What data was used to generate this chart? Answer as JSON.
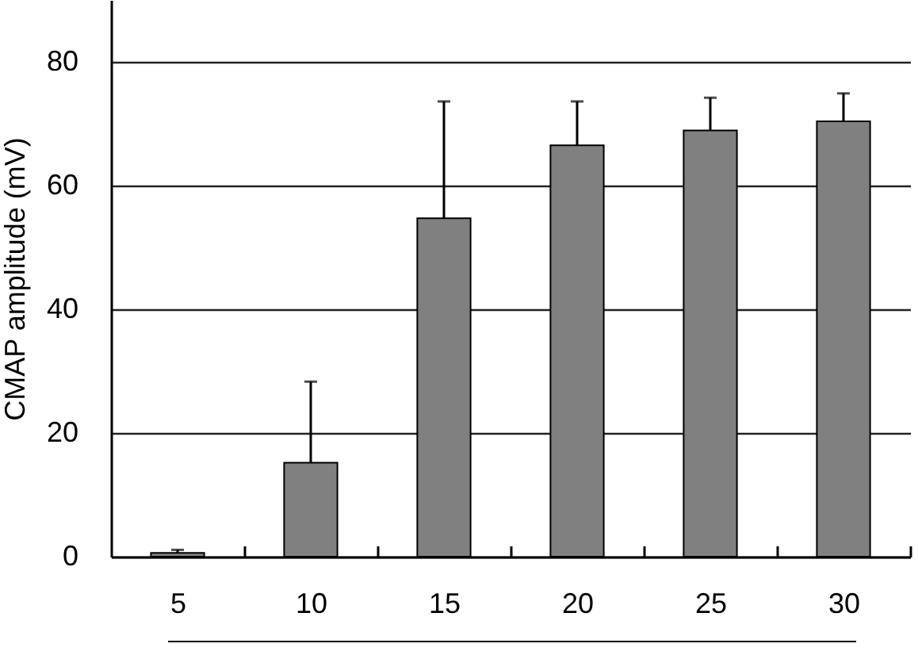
{
  "chart_data": {
    "type": "bar",
    "ylabel": "CMAP amplitude (mV)",
    "categories": [
      "5",
      "10",
      "15",
      "20",
      "25",
      "30"
    ],
    "values": [
      0.6,
      15.2,
      54.7,
      66.5,
      68.9,
      70.4
    ],
    "errors": [
      [
        0.6,
        1.1
      ],
      [
        15.2,
        28.3
      ],
      [
        54.7,
        73.6
      ],
      [
        66.5,
        73.6
      ],
      [
        68.9,
        74.2
      ],
      [
        70.4,
        74.9
      ]
    ],
    "color": "#808080",
    "ylim": [
      0,
      90
    ],
    "yticks": [
      0,
      20,
      40,
      60,
      80
    ],
    "grid": "y"
  }
}
